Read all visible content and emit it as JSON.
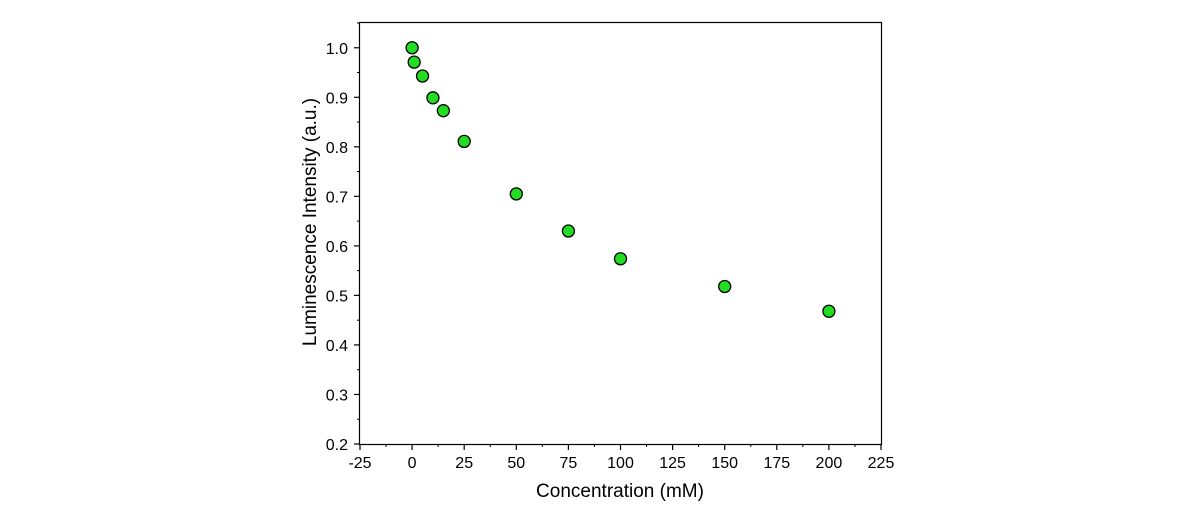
{
  "chart_data": {
    "type": "scatter",
    "title": "",
    "xlabel": "Concentration (mM)",
    "ylabel": "Luminescence Intensity (a.u.)",
    "xlim": [
      -25,
      225
    ],
    "ylim": [
      0.2,
      1.05
    ],
    "x_ticks": [
      -25,
      0,
      25,
      50,
      75,
      100,
      125,
      150,
      175,
      200,
      225
    ],
    "x_tick_labels": [
      "-25",
      "0",
      "25",
      "50",
      "75",
      "100",
      "125",
      "150",
      "175",
      "200",
      "225"
    ],
    "y_ticks": [
      0.2,
      0.3,
      0.4,
      0.5,
      0.6,
      0.7,
      0.8,
      0.9,
      1.0
    ],
    "y_tick_labels": [
      "0.2",
      "0.3",
      "0.4",
      "0.5",
      "0.6",
      "0.7",
      "0.8",
      "0.9",
      "1.0"
    ],
    "grid": false,
    "legend": "none",
    "marker_color": "#22dd22",
    "marker_edge_color": "#000000",
    "series": [
      {
        "x": [
          0,
          1,
          5,
          10,
          15,
          25,
          50,
          75,
          100,
          150,
          200
        ],
        "y": [
          1.0,
          0.971,
          0.943,
          0.899,
          0.873,
          0.811,
          0.705,
          0.63,
          0.574,
          0.518,
          0.468
        ]
      }
    ]
  }
}
